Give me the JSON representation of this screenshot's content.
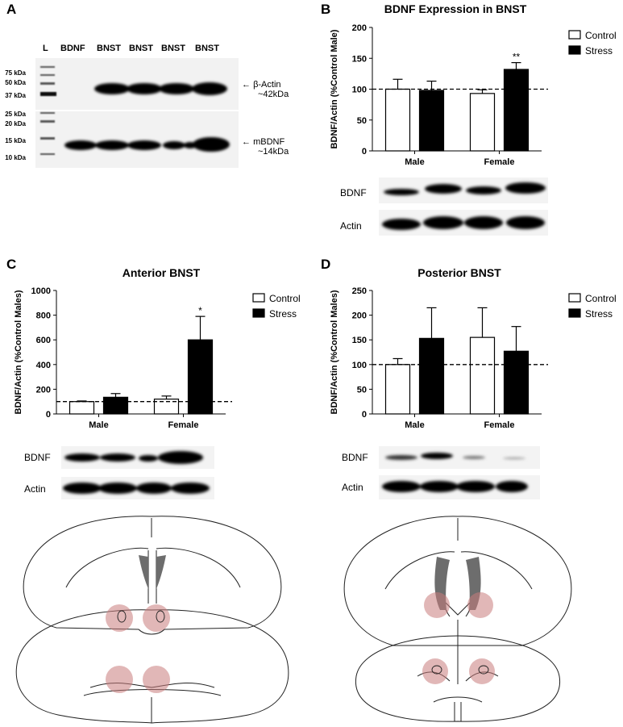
{
  "panels": {
    "a": "A",
    "b": "B",
    "c": "C",
    "d": "D"
  },
  "blot_a": {
    "lanes": [
      "L",
      "BDNF",
      "BNST",
      "BNST",
      "BNST",
      "BNST"
    ],
    "mw_markers": [
      "75 kDa",
      "50 kDa",
      "37 kDa",
      "25 kDa",
      "20 kDa",
      "15 kDa",
      "10 kDa"
    ],
    "actin_label": "β-Actin",
    "actin_size": "~42kDa",
    "bdnf_label": "mBDNF",
    "bdnf_size": "~14kDa"
  },
  "strips": {
    "bdnf": "BDNF",
    "actin": "Actin"
  },
  "chart_data": [
    {
      "type": "bar",
      "title": "BDNF Expression in BNST",
      "ylabel": "BDNF/Actin (%Control Male)",
      "categories": [
        "Male",
        "Female"
      ],
      "series": [
        {
          "name": "Control",
          "values": [
            100,
            93
          ],
          "errors": [
            16,
            6
          ]
        },
        {
          "name": "Stress",
          "values": [
            98,
            132
          ],
          "errors": [
            15,
            11
          ]
        }
      ],
      "ylim": [
        0,
        200
      ],
      "yticks": [
        "0",
        "50",
        "100",
        "150",
        "200"
      ],
      "reference_line": 100,
      "significance": [
        "",
        "**"
      ],
      "legend": "top-right"
    },
    {
      "type": "bar",
      "title": "Anterior BNST",
      "ylabel": "BDNF/Actin (%Control Males)",
      "categories": [
        "Male",
        "Female"
      ],
      "series": [
        {
          "name": "Control",
          "values": [
            100,
            120
          ],
          "errors": [
            5,
            25
          ]
        },
        {
          "name": "Stress",
          "values": [
            135,
            600
          ],
          "errors": [
            30,
            190
          ]
        }
      ],
      "ylim": [
        0,
        1000
      ],
      "yticks": [
        "0",
        "200",
        "400",
        "600",
        "800",
        "1000"
      ],
      "reference_line": 100,
      "significance": [
        "",
        "*"
      ],
      "legend": "top-right"
    },
    {
      "type": "bar",
      "title": "Posterior BNST",
      "ylabel": "BDNF/Actin (%Control Males)",
      "categories": [
        "Male",
        "Female"
      ],
      "series": [
        {
          "name": "Control",
          "values": [
            100,
            155
          ],
          "errors": [
            12,
            60
          ]
        },
        {
          "name": "Stress",
          "values": [
            153,
            127
          ],
          "errors": [
            62,
            50
          ]
        }
      ],
      "ylim": [
        0,
        250
      ],
      "yticks": [
        "0",
        "50",
        "100",
        "150",
        "200",
        "250"
      ],
      "reference_line": 100,
      "significance": [
        "",
        ""
      ],
      "legend": "top-right"
    }
  ]
}
